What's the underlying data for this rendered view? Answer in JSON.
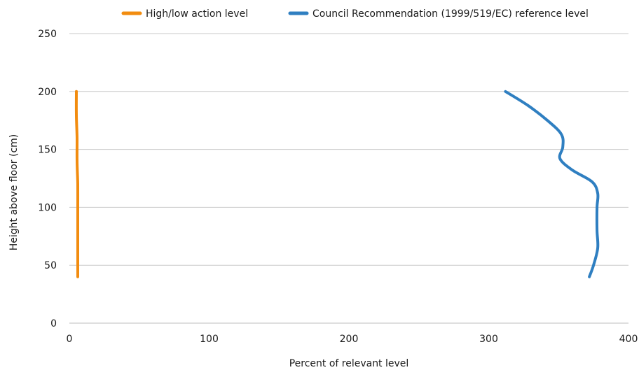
{
  "chart_data": {
    "type": "line",
    "xlabel": "Percent of relevant level",
    "ylabel": "Height above floor (cm)",
    "xlim": [
      0,
      400
    ],
    "ylim": [
      0,
      250
    ],
    "xticks": [
      0,
      100,
      200,
      300,
      400
    ],
    "yticks": [
      0,
      50,
      100,
      150,
      200,
      250
    ],
    "xtick_labels": [
      "0",
      "100",
      "200",
      "300",
      "400"
    ],
    "ytick_labels": [
      "0",
      "50",
      "100",
      "150",
      "200",
      "250"
    ],
    "grid": "horizontal",
    "legend_position": "top",
    "series": [
      {
        "name": "High/low action level",
        "color": "#f28c0f",
        "points": [
          [
            6,
            40
          ],
          [
            6,
            60
          ],
          [
            6,
            80
          ],
          [
            6,
            100
          ],
          [
            6,
            120
          ],
          [
            5.5,
            140
          ],
          [
            5.5,
            160
          ],
          [
            5,
            180
          ],
          [
            5,
            200
          ]
        ]
      },
      {
        "name": "Council Recommendation (1999/519/EC) reference level",
        "color": "#2f7fc1",
        "points": [
          [
            372,
            40
          ],
          [
            375,
            50
          ],
          [
            378,
            65
          ],
          [
            377.5,
            80
          ],
          [
            377.5,
            100
          ],
          [
            378,
            112
          ],
          [
            374,
            122
          ],
          [
            360,
            132
          ],
          [
            351,
            142
          ],
          [
            353,
            152
          ],
          [
            352,
            163
          ],
          [
            342,
            175
          ],
          [
            328,
            188
          ],
          [
            312,
            200
          ]
        ]
      }
    ]
  }
}
